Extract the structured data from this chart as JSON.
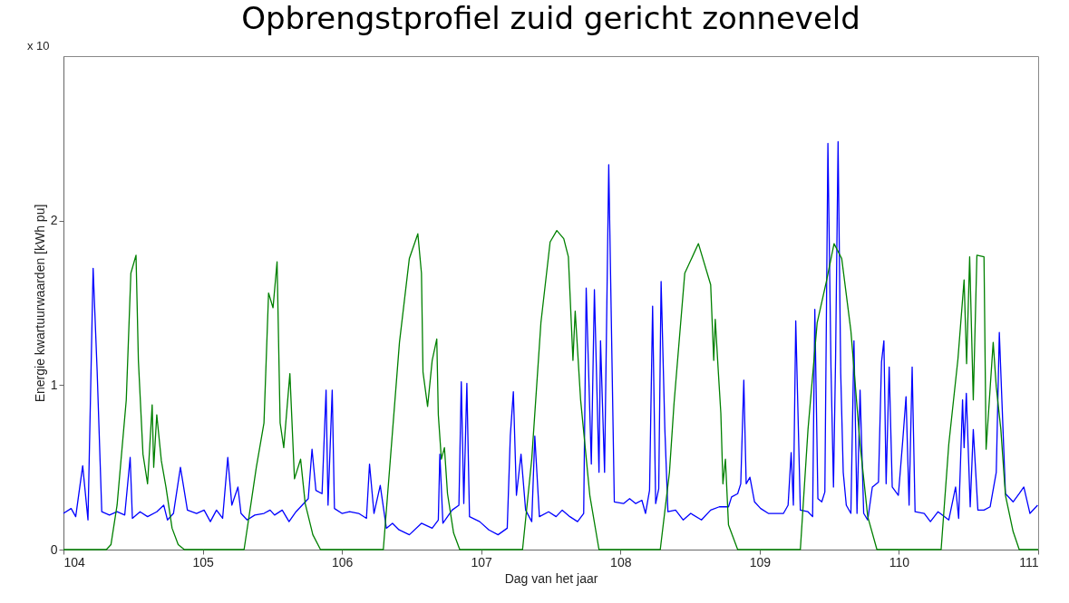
{
  "chart_data": {
    "type": "line",
    "title": "Opbrengstprofiel zuid gericht zonneveld",
    "xlabel": "Dag van het jaar",
    "ylabel": "Energie kwartuurwaarden [kWh pu]",
    "annotations": [
      "x 10"
    ],
    "xlim": [
      104,
      111
    ],
    "xticks": [
      104,
      105,
      106,
      107,
      108,
      109,
      110,
      111
    ],
    "ylim": [
      0,
      3
    ],
    "yticks": [
      0,
      1,
      2
    ],
    "grid": false,
    "legend": false,
    "marker": "none",
    "line_style": "solid",
    "series": [
      {
        "color": "#0000ff",
        "x": [
          104.0,
          104.055,
          104.088,
          104.138,
          104.176,
          104.213,
          104.242,
          104.275,
          104.33,
          104.385,
          104.44,
          104.479,
          104.495,
          104.55,
          104.604,
          104.67,
          104.72,
          104.747,
          104.79,
          104.84,
          104.89,
          104.956,
          105.01,
          105.055,
          105.099,
          105.143,
          105.18,
          105.209,
          105.253,
          105.275,
          105.319,
          105.374,
          105.44,
          105.484,
          105.516,
          105.571,
          105.62,
          105.67,
          105.714,
          105.758,
          105.785,
          105.813,
          105.857,
          105.886,
          105.9,
          105.93,
          105.946,
          106.0,
          106.055,
          106.12,
          106.176,
          106.198,
          106.23,
          106.275,
          106.319,
          106.363,
          106.41,
          106.484,
          106.571,
          106.648,
          106.692,
          106.703,
          106.725,
          106.791,
          106.84,
          106.857,
          106.875,
          106.897,
          106.916,
          106.989,
          107.055,
          107.121,
          107.187,
          107.209,
          107.231,
          107.253,
          107.286,
          107.319,
          107.363,
          107.385,
          107.418,
          107.484,
          107.538,
          107.582,
          107.637,
          107.692,
          107.736,
          107.754,
          107.791,
          107.813,
          107.846,
          107.857,
          107.886,
          107.916,
          107.956,
          108.022,
          108.066,
          108.11,
          108.154,
          108.18,
          108.209,
          108.231,
          108.253,
          108.275,
          108.292,
          108.319,
          108.341,
          108.396,
          108.451,
          108.505,
          108.582,
          108.648,
          108.71,
          108.776,
          108.798,
          108.842,
          108.864,
          108.886,
          108.903,
          108.93,
          108.963,
          109.007,
          109.062,
          109.171,
          109.204,
          109.226,
          109.242,
          109.259,
          109.292,
          109.347,
          109.38,
          109.396,
          109.418,
          109.446,
          109.468,
          109.49,
          109.512,
          109.53,
          109.545,
          109.563,
          109.582,
          109.6,
          109.622,
          109.655,
          109.677,
          109.699,
          109.721,
          109.747,
          109.776,
          109.809,
          109.853,
          109.875,
          109.892,
          109.908,
          109.93,
          109.952,
          109.996,
          110.029,
          110.051,
          110.073,
          110.095,
          110.116,
          110.182,
          110.226,
          110.281,
          110.358,
          110.407,
          110.429,
          110.457,
          110.468,
          110.484,
          110.512,
          110.534,
          110.567,
          110.611,
          110.655,
          110.699,
          110.721,
          110.765,
          110.82,
          110.864,
          110.897,
          110.941,
          110.996
        ],
        "values": [
          0.22,
          0.25,
          0.2,
          0.51,
          0.18,
          1.71,
          1.08,
          0.23,
          0.21,
          0.23,
          0.21,
          0.56,
          0.19,
          0.23,
          0.2,
          0.23,
          0.27,
          0.18,
          0.22,
          0.5,
          0.24,
          0.22,
          0.24,
          0.17,
          0.24,
          0.19,
          0.56,
          0.27,
          0.38,
          0.22,
          0.18,
          0.21,
          0.22,
          0.24,
          0.21,
          0.24,
          0.17,
          0.23,
          0.27,
          0.31,
          0.61,
          0.36,
          0.34,
          0.97,
          0.27,
          0.97,
          0.25,
          0.22,
          0.23,
          0.22,
          0.19,
          0.52,
          0.22,
          0.39,
          0.13,
          0.16,
          0.12,
          0.09,
          0.16,
          0.13,
          0.18,
          0.58,
          0.16,
          0.24,
          0.27,
          1.02,
          0.28,
          1.01,
          0.2,
          0.17,
          0.12,
          0.09,
          0.13,
          0.69,
          0.96,
          0.33,
          0.58,
          0.24,
          0.17,
          0.69,
          0.2,
          0.23,
          0.2,
          0.24,
          0.2,
          0.17,
          0.22,
          1.59,
          0.52,
          1.58,
          0.47,
          1.27,
          0.47,
          2.34,
          0.29,
          0.28,
          0.31,
          0.28,
          0.3,
          0.22,
          0.36,
          1.48,
          0.28,
          0.37,
          1.63,
          0.73,
          0.23,
          0.24,
          0.18,
          0.22,
          0.18,
          0.24,
          0.26,
          0.26,
          0.32,
          0.34,
          0.4,
          1.03,
          0.4,
          0.44,
          0.29,
          0.25,
          0.22,
          0.22,
          0.27,
          0.59,
          0.27,
          1.39,
          0.24,
          0.23,
          0.2,
          1.46,
          0.31,
          0.29,
          0.35,
          2.47,
          1.11,
          0.38,
          1.16,
          2.48,
          1.07,
          0.47,
          0.27,
          0.22,
          1.27,
          0.22,
          0.97,
          0.22,
          0.18,
          0.38,
          0.41,
          1.14,
          1.27,
          0.4,
          1.11,
          0.38,
          0.33,
          0.68,
          0.93,
          0.27,
          1.11,
          0.23,
          0.22,
          0.17,
          0.23,
          0.18,
          0.38,
          0.19,
          0.91,
          0.62,
          0.95,
          0.26,
          0.73,
          0.24,
          0.24,
          0.26,
          0.47,
          1.32,
          0.34,
          0.29,
          0.34,
          0.38,
          0.22,
          0.27
        ]
      },
      {
        "color": "#008000",
        "x": [
          104.0,
          104.308,
          104.341,
          104.385,
          104.451,
          104.484,
          104.521,
          104.538,
          104.571,
          104.604,
          104.637,
          104.648,
          104.67,
          104.703,
          104.736,
          104.78,
          104.824,
          104.868,
          105.297,
          105.352,
          105.385,
          105.44,
          105.473,
          105.505,
          105.534,
          105.556,
          105.582,
          105.626,
          105.659,
          105.703,
          105.736,
          105.791,
          105.846,
          106.297,
          106.413,
          106.484,
          106.545,
          106.571,
          106.582,
          106.615,
          106.648,
          106.681,
          106.692,
          106.714,
          106.736,
          106.758,
          106.802,
          106.846,
          107.297,
          107.363,
          107.429,
          107.495,
          107.543,
          107.593,
          107.626,
          107.659,
          107.675,
          107.714,
          107.78,
          107.846,
          108.286,
          108.352,
          108.385,
          108.462,
          108.56,
          108.648,
          108.67,
          108.681,
          108.703,
          108.721,
          108.736,
          108.754,
          108.776,
          108.842,
          109.292,
          109.347,
          109.413,
          109.479,
          109.534,
          109.589,
          109.655,
          109.721,
          109.776,
          109.842,
          110.303,
          110.358,
          110.424,
          110.468,
          110.486,
          110.508,
          110.534,
          110.56,
          110.611,
          110.626,
          110.655,
          110.677,
          110.699,
          110.732,
          110.765,
          110.82,
          110.864,
          111.0
        ],
        "values": [
          0,
          0,
          0.03,
          0.27,
          0.91,
          1.68,
          1.79,
          1.15,
          0.58,
          0.4,
          0.88,
          0.5,
          0.82,
          0.54,
          0.38,
          0.13,
          0.03,
          0,
          0,
          0.31,
          0.5,
          0.77,
          1.56,
          1.47,
          1.75,
          0.77,
          0.62,
          1.07,
          0.43,
          0.55,
          0.28,
          0.09,
          0,
          0,
          1.26,
          1.77,
          1.92,
          1.68,
          1.08,
          0.87,
          1.15,
          1.28,
          0.82,
          0.55,
          0.62,
          0.34,
          0.1,
          0,
          0,
          0.55,
          1.38,
          1.87,
          1.94,
          1.89,
          1.78,
          1.15,
          1.45,
          0.91,
          0.33,
          0,
          0,
          0.47,
          0.89,
          1.68,
          1.86,
          1.61,
          1.15,
          1.4,
          1.08,
          0.83,
          0.4,
          0.55,
          0.15,
          0,
          0,
          0.73,
          1.38,
          1.63,
          1.86,
          1.77,
          1.33,
          0.64,
          0.2,
          0,
          0,
          0.64,
          1.16,
          1.64,
          1.13,
          1.78,
          0.91,
          1.79,
          1.78,
          0.61,
          0.98,
          1.26,
          0.99,
          0.73,
          0.33,
          0.11,
          0,
          0
        ]
      }
    ]
  }
}
